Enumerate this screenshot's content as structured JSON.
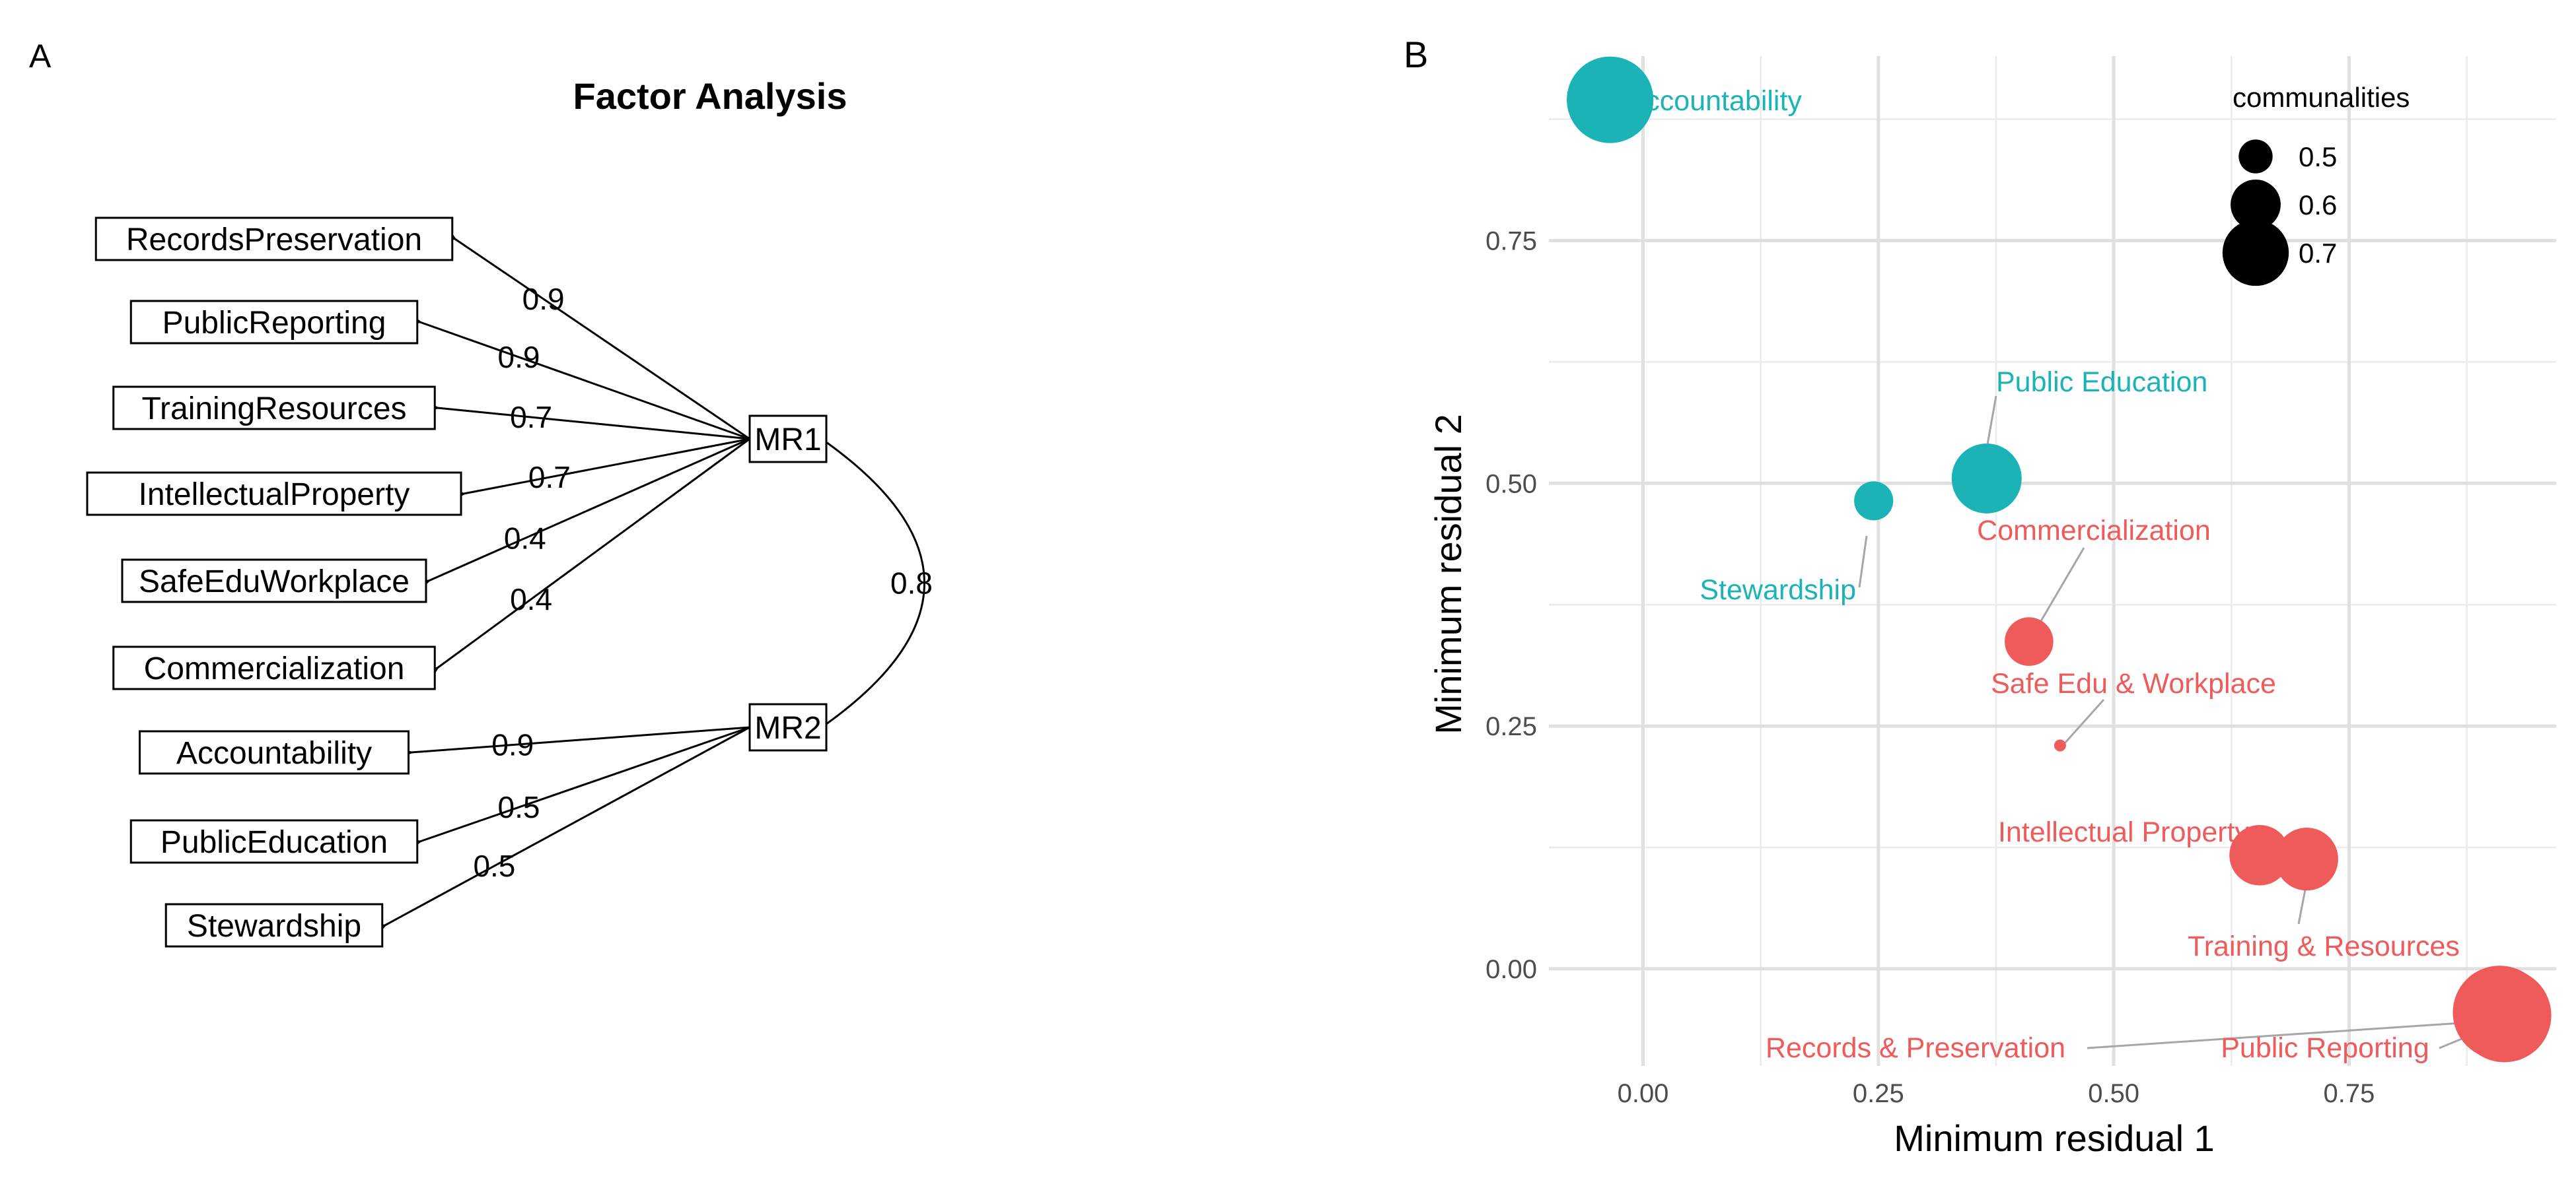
{
  "panel_labels": {
    "a": "A",
    "b": "B"
  },
  "chart_data": [
    {
      "type": "diagram",
      "title": "Factor Analysis",
      "factors": [
        {
          "name": "MR1",
          "loadings": [
            {
              "variable": "RecordsPreservation",
              "value": "0.9"
            },
            {
              "variable": "PublicReporting",
              "value": "0.9"
            },
            {
              "variable": "TrainingResources",
              "value": "0.7"
            },
            {
              "variable": "IntellectualProperty",
              "value": "0.7"
            },
            {
              "variable": "SafeEduWorkplace",
              "value": "0.4"
            },
            {
              "variable": "Commercialization",
              "value": "0.4"
            }
          ]
        },
        {
          "name": "MR2",
          "loadings": [
            {
              "variable": "Accountability",
              "value": "0.9"
            },
            {
              "variable": "PublicEducation",
              "value": "0.5"
            },
            {
              "variable": "Stewardship",
              "value": "0.5"
            }
          ]
        }
      ],
      "correlation": {
        "between": [
          "MR1",
          "MR2"
        ],
        "value": "0.8"
      }
    },
    {
      "type": "scatter",
      "xlabel": "Minimum residual 1",
      "ylabel": "Minimum residual 2",
      "xlim": [
        -0.1,
        0.97
      ],
      "ylim": [
        -0.1,
        0.94
      ],
      "x_ticks": [
        0.0,
        0.25,
        0.5,
        0.75
      ],
      "x_tick_labels": [
        "0.00",
        "0.25",
        "0.50",
        "0.75"
      ],
      "y_ticks": [
        0.0,
        0.25,
        0.5,
        0.75
      ],
      "y_tick_labels": [
        "0.00",
        "0.25",
        "0.50",
        "0.75"
      ],
      "grid": true,
      "colors": {
        "MR1": "#ef5b5b",
        "MR2": "#1cb3b7"
      },
      "legend": {
        "title": "communalities",
        "position": "top-right",
        "entries": [
          {
            "label": "0.5",
            "value": 0.5
          },
          {
            "label": "0.6",
            "value": 0.6
          },
          {
            "label": "0.7",
            "value": 0.7
          }
        ]
      },
      "points": [
        {
          "label": "Accountability",
          "x": -0.035,
          "y": 0.895,
          "communality": 0.72,
          "group": "MR2"
        },
        {
          "label": "Public Education",
          "x": 0.365,
          "y": 0.505,
          "communality": 0.65,
          "group": "MR2"
        },
        {
          "label": "Stewardship",
          "x": 0.245,
          "y": 0.482,
          "communality": 0.52,
          "group": "MR2"
        },
        {
          "label": "Commercialization",
          "x": 0.41,
          "y": 0.337,
          "communality": 0.56,
          "group": "MR1"
        },
        {
          "label": "Safe Edu & Workplace",
          "x": 0.443,
          "y": 0.23,
          "communality": 0.35,
          "group": "MR1"
        },
        {
          "label": "Intellectual Property",
          "x": 0.655,
          "y": 0.117,
          "communality": 0.61,
          "group": "MR1"
        },
        {
          "label": "Training & Resources",
          "x": 0.705,
          "y": 0.113,
          "communality": 0.62,
          "group": "MR1"
        },
        {
          "label": "Records & Preservation",
          "x": 0.91,
          "y": -0.045,
          "communality": 0.75,
          "group": "MR1"
        },
        {
          "label": "Public Reporting",
          "x": 0.915,
          "y": -0.048,
          "communality": 0.75,
          "group": "MR1"
        }
      ]
    }
  ]
}
